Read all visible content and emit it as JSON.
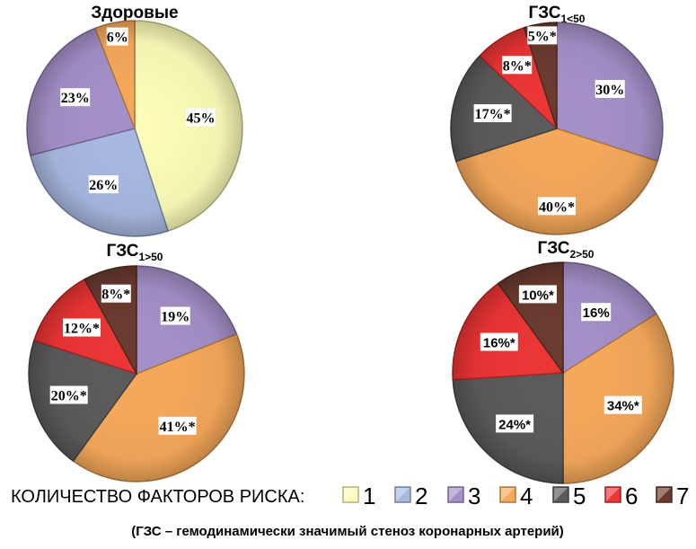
{
  "colors": {
    "1": "#fcfcb8",
    "2": "#a8b8e0",
    "3": "#a490c8",
    "4": "#f5a85a",
    "5": "#5a5a5a",
    "6": "#ec3434",
    "7": "#6a3a2e"
  },
  "chart_data": [
    {
      "type": "pie",
      "title": "Здоровые",
      "title_sub": "",
      "slices": [
        {
          "category": "1",
          "value": 45,
          "label": "45%"
        },
        {
          "category": "2",
          "value": 26,
          "label": "26%"
        },
        {
          "category": "3",
          "value": 23,
          "label": "23%"
        },
        {
          "category": "4",
          "value": 6,
          "label": "6%"
        }
      ]
    },
    {
      "type": "pie",
      "title": "ГЗС",
      "title_sub": "1<50",
      "slices": [
        {
          "category": "3",
          "value": 30,
          "label": "30%"
        },
        {
          "category": "4",
          "value": 40,
          "label": "40%*"
        },
        {
          "category": "5",
          "value": 17,
          "label": "17%*"
        },
        {
          "category": "6",
          "value": 8,
          "label": "8%*"
        },
        {
          "category": "7",
          "value": 5,
          "label": "5%*"
        }
      ]
    },
    {
      "type": "pie",
      "title": "ГЗС",
      "title_sub": "1>50",
      "slices": [
        {
          "category": "3",
          "value": 19,
          "label": "19%"
        },
        {
          "category": "4",
          "value": 41,
          "label": "41%*"
        },
        {
          "category": "5",
          "value": 20,
          "label": "20%*"
        },
        {
          "category": "6",
          "value": 12,
          "label": "12%*"
        },
        {
          "category": "7",
          "value": 8,
          "label": "8%*"
        }
      ]
    },
    {
      "type": "pie",
      "title": "ГЗС",
      "title_sub": "2>50",
      "slices": [
        {
          "category": "3",
          "value": 16,
          "label": "16%"
        },
        {
          "category": "4",
          "value": 34,
          "label": "34%*"
        },
        {
          "category": "5",
          "value": 24,
          "label": "24%*"
        },
        {
          "category": "6",
          "value": 16,
          "label": "16%*"
        },
        {
          "category": "7",
          "value": 10,
          "label": "10%*"
        }
      ]
    }
  ],
  "legend": {
    "title": "КОЛИЧЕСТВО ФАКТОРОВ РИСКА:",
    "items": [
      "1",
      "2",
      "3",
      "4",
      "5",
      "6",
      "7"
    ]
  },
  "footnote": "(ГЗС – гемодинамически значимый стеноз коронарных артерий)"
}
